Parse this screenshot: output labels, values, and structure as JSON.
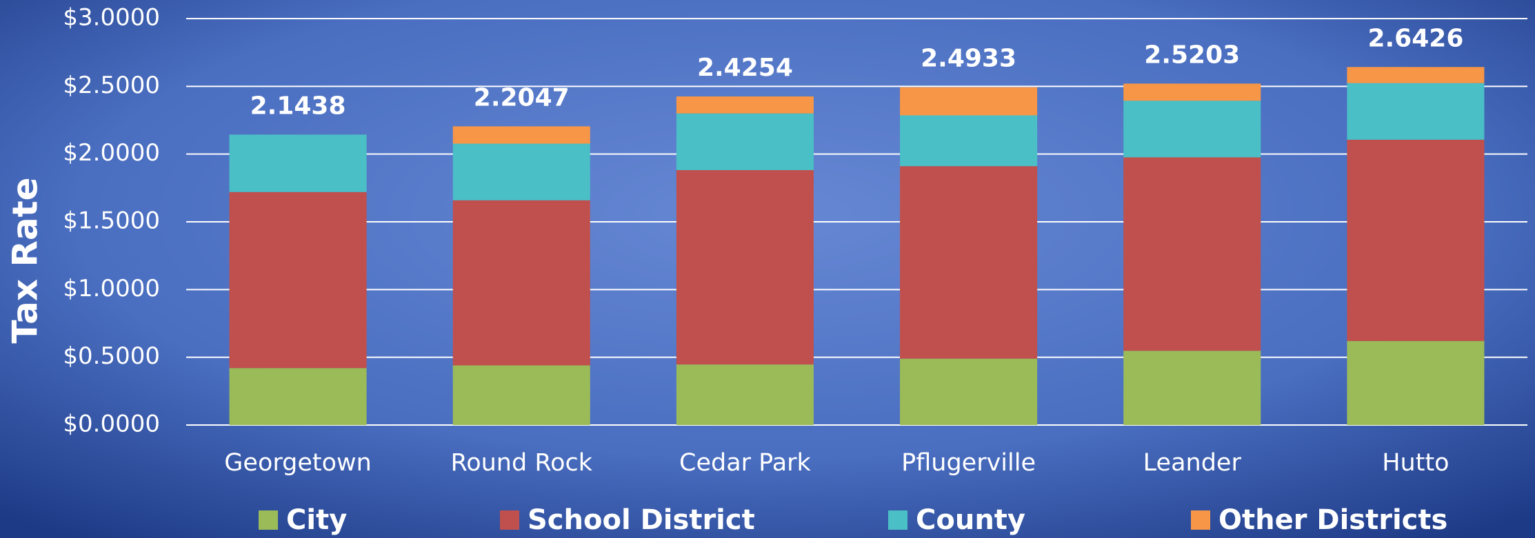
{
  "chart_data": {
    "type": "stacked_bar",
    "y_axis_label": "Tax Rate",
    "categories": [
      "Georgetown",
      "Round Rock",
      "Cedar Park",
      "Pflugerville",
      "Leander",
      "Hutto"
    ],
    "series": [
      {
        "name": "City",
        "color": "#9bbb59",
        "values": [
          0.42,
          0.44,
          0.447,
          0.49,
          0.548,
          0.62
        ]
      },
      {
        "name": "School District",
        "color": "#c0504d",
        "values": [
          1.3,
          1.219,
          1.435,
          1.421,
          1.428,
          1.486
        ]
      },
      {
        "name": "County",
        "color": "#4bbfc6",
        "values": [
          0.4238,
          0.418,
          0.418,
          0.375,
          0.418,
          0.418
        ]
      },
      {
        "name": "Other Districts",
        "color": "#f79646",
        "values": [
          0,
          0.1277,
          0.1254,
          0.2073,
          0.1263,
          0.1186
        ]
      }
    ],
    "totals": [
      2.1438,
      2.2047,
      2.4254,
      2.4933,
      2.5203,
      2.6426
    ],
    "ylim": [
      0,
      3
    ],
    "yticks": [
      {
        "value": 0,
        "label": "$0.0000"
      },
      {
        "value": 0.5,
        "label": "$0.5000"
      },
      {
        "value": 1,
        "label": "$1.0000"
      },
      {
        "value": 1.5,
        "label": "$1.5000"
      },
      {
        "value": 2,
        "label": "$2.0000"
      },
      {
        "value": 2.5,
        "label": "$2.5000"
      },
      {
        "value": 3,
        "label": "$3.0000"
      }
    ],
    "grid": true,
    "legend": "bottom"
  }
}
